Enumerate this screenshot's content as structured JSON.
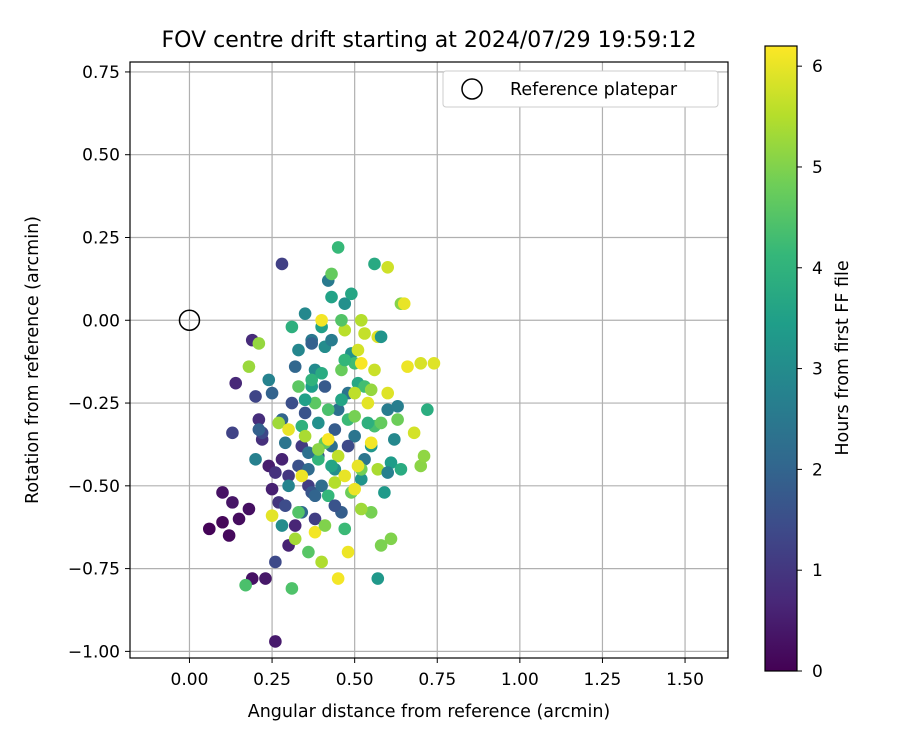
{
  "chart_data": {
    "type": "scatter",
    "title": "FOV centre drift starting at 2024/07/29 19:59:12",
    "xlabel": "Angular distance from reference (arcmin)",
    "ylabel": "Rotation from reference (arcmin)",
    "xlim": [
      -0.18,
      1.63
    ],
    "ylim": [
      -1.02,
      0.78
    ],
    "xticks": [
      0.0,
      0.25,
      0.5,
      0.75,
      1.0,
      1.25,
      1.5
    ],
    "xtick_labels": [
      "0.00",
      "0.25",
      "0.50",
      "0.75",
      "1.00",
      "1.25",
      "1.50"
    ],
    "yticks": [
      -1.0,
      -0.75,
      -0.5,
      -0.25,
      0.0,
      0.25,
      0.5,
      0.75
    ],
    "ytick_labels": [
      "−1.00",
      "−0.75",
      "−0.50",
      "−0.25",
      "0.00",
      "0.25",
      "0.50",
      "0.75"
    ],
    "grid": true,
    "legend": {
      "placement": "top-right",
      "label": "Reference platepar"
    },
    "reference_point": {
      "x": 0.0,
      "y": 0.0
    },
    "colorbar": {
      "label": "Hours from first FF file",
      "colormap": "viridis",
      "range": [
        0,
        6.2
      ],
      "ticks": [
        0,
        1,
        2,
        3,
        4,
        5,
        6
      ],
      "tick_labels": [
        "0",
        "1",
        "2",
        "3",
        "4",
        "5",
        "6"
      ],
      "stops": [
        "#440154",
        "#482878",
        "#3e4989",
        "#31688e",
        "#26828e",
        "#1f9e89",
        "#35b779",
        "#6ece58",
        "#b5de2b",
        "#fde725"
      ]
    },
    "series": [
      {
        "points": [
          {
            "x": 0.06,
            "y": -0.63,
            "c": 0.05
          },
          {
            "x": 0.1,
            "y": -0.61,
            "c": 0.1
          },
          {
            "x": 0.12,
            "y": -0.65,
            "c": 0.15
          },
          {
            "x": 0.15,
            "y": -0.6,
            "c": 0.2
          },
          {
            "x": 0.18,
            "y": -0.57,
            "c": 0.25
          },
          {
            "x": 0.1,
            "y": -0.52,
            "c": 0.3
          },
          {
            "x": 0.13,
            "y": -0.55,
            "c": 0.35
          },
          {
            "x": 0.19,
            "y": -0.78,
            "c": 0.3
          },
          {
            "x": 0.23,
            "y": -0.78,
            "c": 0.4
          },
          {
            "x": 0.26,
            "y": -0.97,
            "c": 0.45
          },
          {
            "x": 0.24,
            "y": -0.44,
            "c": 0.5
          },
          {
            "x": 0.25,
            "y": -0.51,
            "c": 0.55
          },
          {
            "x": 0.28,
            "y": -0.42,
            "c": 0.6
          },
          {
            "x": 0.3,
            "y": -0.68,
            "c": 0.6
          },
          {
            "x": 0.32,
            "y": -0.62,
            "c": 0.65
          },
          {
            "x": 0.14,
            "y": -0.19,
            "c": 0.7
          },
          {
            "x": 0.19,
            "y": -0.06,
            "c": 0.75
          },
          {
            "x": 0.21,
            "y": -0.3,
            "c": 0.8
          },
          {
            "x": 0.22,
            "y": -0.36,
            "c": 0.85
          },
          {
            "x": 0.26,
            "y": -0.46,
            "c": 0.9
          },
          {
            "x": 0.27,
            "y": -0.55,
            "c": 0.95
          },
          {
            "x": 0.3,
            "y": -0.47,
            "c": 1.0
          },
          {
            "x": 0.34,
            "y": -0.38,
            "c": 1.05
          },
          {
            "x": 0.36,
            "y": -0.5,
            "c": 1.1
          },
          {
            "x": 0.38,
            "y": -0.6,
            "c": 1.15
          },
          {
            "x": 0.28,
            "y": 0.17,
            "c": 1.2
          },
          {
            "x": 0.13,
            "y": -0.34,
            "c": 1.25
          },
          {
            "x": 0.2,
            "y": -0.23,
            "c": 1.3
          },
          {
            "x": 0.22,
            "y": -0.34,
            "c": 1.35
          },
          {
            "x": 0.26,
            "y": -0.73,
            "c": 1.4
          },
          {
            "x": 0.29,
            "y": -0.56,
            "c": 1.45
          },
          {
            "x": 0.31,
            "y": -0.25,
            "c": 1.5
          },
          {
            "x": 0.33,
            "y": -0.44,
            "c": 1.55
          },
          {
            "x": 0.35,
            "y": -0.28,
            "c": 1.6
          },
          {
            "x": 0.37,
            "y": -0.52,
            "c": 1.65
          },
          {
            "x": 0.39,
            "y": -0.41,
            "c": 1.7
          },
          {
            "x": 0.41,
            "y": -0.2,
            "c": 1.75
          },
          {
            "x": 0.44,
            "y": -0.33,
            "c": 1.8
          },
          {
            "x": 0.46,
            "y": -0.58,
            "c": 1.85
          },
          {
            "x": 0.21,
            "y": -0.33,
            "c": 1.9
          },
          {
            "x": 0.25,
            "y": -0.22,
            "c": 1.95
          },
          {
            "x": 0.28,
            "y": -0.3,
            "c": 2.0
          },
          {
            "x": 0.32,
            "y": -0.14,
            "c": 2.05
          },
          {
            "x": 0.34,
            "y": -0.58,
            "c": 2.1
          },
          {
            "x": 0.36,
            "y": -0.45,
            "c": 2.15
          },
          {
            "x": 0.4,
            "y": -0.5,
            "c": 2.2
          },
          {
            "x": 0.43,
            "y": -0.38,
            "c": 2.25
          },
          {
            "x": 0.45,
            "y": -0.27,
            "c": 2.3
          },
          {
            "x": 0.48,
            "y": -0.22,
            "c": 2.35
          },
          {
            "x": 0.5,
            "y": -0.35,
            "c": 2.4
          },
          {
            "x": 0.53,
            "y": -0.42,
            "c": 2.45
          },
          {
            "x": 0.37,
            "y": -0.06,
            "c": 2.5
          },
          {
            "x": 0.42,
            "y": 0.12,
            "c": 2.55
          },
          {
            "x": 0.6,
            "y": -0.27,
            "c": 2.6
          },
          {
            "x": 0.63,
            "y": -0.26,
            "c": 2.65
          },
          {
            "x": 0.2,
            "y": -0.42,
            "c": 2.7
          },
          {
            "x": 0.24,
            "y": -0.18,
            "c": 2.75
          },
          {
            "x": 0.3,
            "y": -0.5,
            "c": 2.8
          },
          {
            "x": 0.33,
            "y": -0.09,
            "c": 2.85
          },
          {
            "x": 0.35,
            "y": 0.02,
            "c": 2.9
          },
          {
            "x": 0.38,
            "y": -0.15,
            "c": 2.95
          },
          {
            "x": 0.41,
            "y": -0.08,
            "c": 3.0
          },
          {
            "x": 0.44,
            "y": -0.45,
            "c": 3.05
          },
          {
            "x": 0.47,
            "y": 0.05,
            "c": 3.1
          },
          {
            "x": 0.49,
            "y": -0.1,
            "c": 3.15
          },
          {
            "x": 0.52,
            "y": -0.48,
            "c": 3.2
          },
          {
            "x": 0.55,
            "y": -0.38,
            "c": 3.25
          },
          {
            "x": 0.57,
            "y": -0.78,
            "c": 3.3
          },
          {
            "x": 0.59,
            "y": -0.52,
            "c": 3.35
          },
          {
            "x": 0.61,
            "y": -0.43,
            "c": 3.4
          },
          {
            "x": 0.37,
            "y": -0.2,
            "c": 3.45
          },
          {
            "x": 0.4,
            "y": -0.02,
            "c": 3.5
          },
          {
            "x": 0.43,
            "y": 0.07,
            "c": 3.55
          },
          {
            "x": 0.46,
            "y": -0.24,
            "c": 3.6
          },
          {
            "x": 0.49,
            "y": 0.08,
            "c": 3.65
          },
          {
            "x": 0.51,
            "y": -0.19,
            "c": 3.7
          },
          {
            "x": 0.56,
            "y": 0.17,
            "c": 3.75
          },
          {
            "x": 0.64,
            "y": -0.45,
            "c": 3.8
          },
          {
            "x": 0.72,
            "y": -0.27,
            "c": 3.85
          },
          {
            "x": 0.31,
            "y": -0.02,
            "c": 3.9
          },
          {
            "x": 0.34,
            "y": -0.32,
            "c": 3.95
          },
          {
            "x": 0.37,
            "y": -0.18,
            "c": 4.0
          },
          {
            "x": 0.39,
            "y": -0.42,
            "c": 4.05
          },
          {
            "x": 0.42,
            "y": -0.53,
            "c": 4.1
          },
          {
            "x": 0.45,
            "y": 0.22,
            "c": 4.15
          },
          {
            "x": 0.48,
            "y": -0.3,
            "c": 4.2
          },
          {
            "x": 0.5,
            "y": -0.13,
            "c": 4.25
          },
          {
            "x": 0.53,
            "y": -0.2,
            "c": 4.3
          },
          {
            "x": 0.56,
            "y": -0.32,
            "c": 4.35
          },
          {
            "x": 0.17,
            "y": -0.8,
            "c": 4.4
          },
          {
            "x": 0.31,
            "y": -0.81,
            "c": 4.45
          },
          {
            "x": 0.33,
            "y": -0.58,
            "c": 4.5
          },
          {
            "x": 0.36,
            "y": -0.7,
            "c": 4.55
          },
          {
            "x": 0.38,
            "y": -0.25,
            "c": 4.6
          },
          {
            "x": 0.41,
            "y": -0.37,
            "c": 4.65
          },
          {
            "x": 0.43,
            "y": 0.14,
            "c": 4.7
          },
          {
            "x": 0.46,
            "y": -0.15,
            "c": 4.75
          },
          {
            "x": 0.49,
            "y": -0.52,
            "c": 4.8
          },
          {
            "x": 0.52,
            "y": -0.45,
            "c": 4.85
          },
          {
            "x": 0.55,
            "y": -0.58,
            "c": 4.9
          },
          {
            "x": 0.58,
            "y": -0.68,
            "c": 4.95
          },
          {
            "x": 0.61,
            "y": -0.66,
            "c": 5.0
          },
          {
            "x": 0.64,
            "y": 0.05,
            "c": 5.05
          },
          {
            "x": 0.7,
            "y": -0.44,
            "c": 5.1
          },
          {
            "x": 0.71,
            "y": -0.41,
            "c": 5.15
          },
          {
            "x": 0.21,
            "y": -0.07,
            "c": 5.2
          },
          {
            "x": 0.18,
            "y": -0.14,
            "c": 5.25
          },
          {
            "x": 0.27,
            "y": -0.31,
            "c": 5.3
          },
          {
            "x": 0.32,
            "y": -0.66,
            "c": 5.35
          },
          {
            "x": 0.35,
            "y": -0.35,
            "c": 5.4
          },
          {
            "x": 0.4,
            "y": -0.73,
            "c": 5.45
          },
          {
            "x": 0.44,
            "y": -0.49,
            "c": 5.5
          },
          {
            "x": 0.47,
            "y": -0.03,
            "c": 5.55
          },
          {
            "x": 0.5,
            "y": -0.22,
            "c": 5.6
          },
          {
            "x": 0.53,
            "y": -0.04,
            "c": 5.65
          },
          {
            "x": 0.56,
            "y": -0.15,
            "c": 5.7
          },
          {
            "x": 0.6,
            "y": 0.16,
            "c": 5.75
          },
          {
            "x": 0.68,
            "y": -0.34,
            "c": 5.8
          },
          {
            "x": 0.7,
            "y": -0.13,
            "c": 5.85
          },
          {
            "x": 0.74,
            "y": -0.13,
            "c": 5.9
          },
          {
            "x": 0.25,
            "y": -0.59,
            "c": 5.95
          },
          {
            "x": 0.3,
            "y": -0.33,
            "c": 6.0
          },
          {
            "x": 0.34,
            "y": -0.47,
            "c": 6.05
          },
          {
            "x": 0.38,
            "y": -0.64,
            "c": 6.1
          },
          {
            "x": 0.42,
            "y": -0.36,
            "c": 6.15
          },
          {
            "x": 0.45,
            "y": -0.78,
            "c": 6.1
          },
          {
            "x": 0.48,
            "y": -0.7,
            "c": 6.05
          },
          {
            "x": 0.51,
            "y": -0.44,
            "c": 6.0
          },
          {
            "x": 0.54,
            "y": -0.25,
            "c": 5.95
          },
          {
            "x": 0.57,
            "y": -0.05,
            "c": 5.9
          },
          {
            "x": 0.65,
            "y": 0.05,
            "c": 6.0
          },
          {
            "x": 0.66,
            "y": -0.14,
            "c": 6.05
          },
          {
            "x": 0.52,
            "y": -0.13,
            "c": 6.15
          },
          {
            "x": 0.55,
            "y": -0.37,
            "c": 6.1
          },
          {
            "x": 0.4,
            "y": 0.0,
            "c": 6.1
          },
          {
            "x": 0.36,
            "y": -0.4,
            "c": 2.3
          },
          {
            "x": 0.39,
            "y": -0.31,
            "c": 3.1
          },
          {
            "x": 0.42,
            "y": -0.27,
            "c": 4.4
          },
          {
            "x": 0.45,
            "y": -0.41,
            "c": 5.6
          },
          {
            "x": 0.47,
            "y": -0.47,
            "c": 6.0
          },
          {
            "x": 0.5,
            "y": -0.29,
            "c": 4.9
          },
          {
            "x": 0.52,
            "y": -0.57,
            "c": 5.3
          },
          {
            "x": 0.54,
            "y": -0.31,
            "c": 3.9
          },
          {
            "x": 0.43,
            "y": -0.06,
            "c": 2.6
          },
          {
            "x": 0.47,
            "y": -0.12,
            "c": 4.1
          },
          {
            "x": 0.51,
            "y": -0.09,
            "c": 5.8
          },
          {
            "x": 0.55,
            "y": -0.21,
            "c": 5.2
          },
          {
            "x": 0.58,
            "y": -0.31,
            "c": 4.7
          },
          {
            "x": 0.62,
            "y": -0.36,
            "c": 2.9
          },
          {
            "x": 0.35,
            "y": -0.24,
            "c": 3.5
          },
          {
            "x": 0.38,
            "y": -0.53,
            "c": 2.0
          },
          {
            "x": 0.41,
            "y": -0.62,
            "c": 5.0
          },
          {
            "x": 0.44,
            "y": -0.56,
            "c": 1.6
          },
          {
            "x": 0.47,
            "y": -0.63,
            "c": 4.2
          },
          {
            "x": 0.5,
            "y": -0.51,
            "c": 6.05
          },
          {
            "x": 0.33,
            "y": -0.2,
            "c": 4.6
          },
          {
            "x": 0.29,
            "y": -0.37,
            "c": 2.4
          },
          {
            "x": 0.28,
            "y": -0.62,
            "c": 3.0
          },
          {
            "x": 0.37,
            "y": -0.07,
            "c": 1.9
          },
          {
            "x": 0.4,
            "y": -0.16,
            "c": 3.8
          },
          {
            "x": 0.46,
            "y": 0.0,
            "c": 4.5
          },
          {
            "x": 0.52,
            "y": 0.0,
            "c": 5.5
          },
          {
            "x": 0.58,
            "y": -0.05,
            "c": 3.2
          },
          {
            "x": 0.6,
            "y": -0.22,
            "c": 5.9
          },
          {
            "x": 0.63,
            "y": -0.3,
            "c": 4.8
          },
          {
            "x": 0.57,
            "y": -0.45,
            "c": 5.4
          },
          {
            "x": 0.6,
            "y": -0.46,
            "c": 2.7
          },
          {
            "x": 0.48,
            "y": -0.38,
            "c": 1.4
          },
          {
            "x": 0.43,
            "y": -0.44,
            "c": 3.6
          },
          {
            "x": 0.39,
            "y": -0.39,
            "c": 5.1
          }
        ]
      }
    ]
  }
}
